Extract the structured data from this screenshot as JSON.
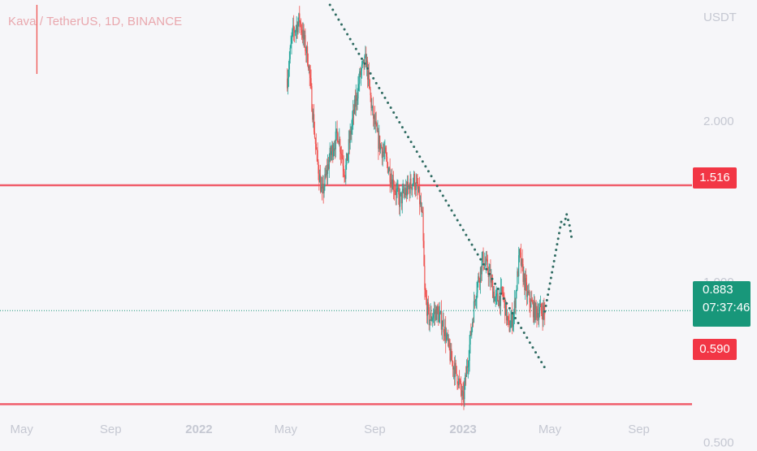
{
  "symbol": {
    "title": "Kava / TetherUS, 1D, BINANCE",
    "currency": "USDT"
  },
  "price_tags": {
    "resistance": "1.516",
    "support": "0.590",
    "current_price": "0.883",
    "countdown": "07:37:46"
  },
  "colors": {
    "background": "#f6f6f9",
    "up_candle": "#26a69a",
    "down_candle": "#ef5350",
    "horizontal_line": "#f05c6b",
    "trendline": "#2f6b62",
    "current_price": "#18977a",
    "axis_text": "#c5c8d2",
    "title_text": "#e9a7ad"
  },
  "chart_data": {
    "type": "candlestick",
    "title": "Kava / TetherUS, 1D, BINANCE",
    "y_scale": "log",
    "ylim": [
      0.46,
      3.3
    ],
    "y_ticks": [
      {
        "value": 2.0,
        "label": "2.000"
      },
      {
        "value": 1.0,
        "label": "1.000"
      },
      {
        "value": 0.5,
        "label": "0.500"
      }
    ],
    "x_range": [
      "2021-04-01",
      "2023-10-31"
    ],
    "x_ticks": [
      {
        "date": "2021-05-01",
        "label": "May"
      },
      {
        "date": "2021-09-01",
        "label": "Sep"
      },
      {
        "date": "2022-01-01",
        "label": "2022"
      },
      {
        "date": "2022-05-01",
        "label": "May"
      },
      {
        "date": "2022-09-01",
        "label": "Sep"
      },
      {
        "date": "2023-01-01",
        "label": "2023"
      },
      {
        "date": "2023-05-01",
        "label": "May"
      },
      {
        "date": "2023-09-01",
        "label": "Sep"
      }
    ],
    "grid": false,
    "horizontal_levels": [
      {
        "name": "resistance",
        "value": 1.516
      },
      {
        "name": "support",
        "value": 0.59
      }
    ],
    "current_price": 0.883,
    "early_wick": {
      "date": "2021-05-22",
      "high": 3.3,
      "low": 2.45
    },
    "price_path": [
      {
        "date": "2022-05-03",
        "close": 2.4
      },
      {
        "date": "2022-05-10",
        "close": 2.9
      },
      {
        "date": "2022-05-20",
        "close": 3.1
      },
      {
        "date": "2022-06-01",
        "close": 2.6
      },
      {
        "date": "2022-06-12",
        "close": 1.75
      },
      {
        "date": "2022-06-20",
        "close": 1.45
      },
      {
        "date": "2022-07-01",
        "close": 1.72
      },
      {
        "date": "2022-07-12",
        "close": 1.9
      },
      {
        "date": "2022-07-22",
        "close": 1.6
      },
      {
        "date": "2022-08-01",
        "close": 2.0
      },
      {
        "date": "2022-08-12",
        "close": 2.45
      },
      {
        "date": "2022-08-20",
        "close": 2.6
      },
      {
        "date": "2022-08-28",
        "close": 2.1
      },
      {
        "date": "2022-09-05",
        "close": 1.85
      },
      {
        "date": "2022-09-15",
        "close": 1.72
      },
      {
        "date": "2022-09-25",
        "close": 1.55
      },
      {
        "date": "2022-10-05",
        "close": 1.42
      },
      {
        "date": "2022-10-15",
        "close": 1.48
      },
      {
        "date": "2022-10-25",
        "close": 1.55
      },
      {
        "date": "2022-11-01",
        "close": 1.45
      },
      {
        "date": "2022-11-06",
        "close": 1.3
      },
      {
        "date": "2022-11-09",
        "close": 0.95
      },
      {
        "date": "2022-11-15",
        "close": 0.85
      },
      {
        "date": "2022-11-25",
        "close": 0.88
      },
      {
        "date": "2022-12-05",
        "close": 0.83
      },
      {
        "date": "2022-12-15",
        "close": 0.72
      },
      {
        "date": "2022-12-25",
        "close": 0.66
      },
      {
        "date": "2023-01-01",
        "close": 0.6
      },
      {
        "date": "2023-01-10",
        "close": 0.76
      },
      {
        "date": "2023-01-18",
        "close": 0.95
      },
      {
        "date": "2023-01-28",
        "close": 1.1
      },
      {
        "date": "2023-02-05",
        "close": 1.05
      },
      {
        "date": "2023-02-15",
        "close": 0.92
      },
      {
        "date": "2023-02-25",
        "close": 0.95
      },
      {
        "date": "2023-03-05",
        "close": 0.82
      },
      {
        "date": "2023-03-12",
        "close": 0.87
      },
      {
        "date": "2023-03-20",
        "close": 1.12
      },
      {
        "date": "2023-03-30",
        "close": 0.95
      },
      {
        "date": "2023-04-10",
        "close": 0.88
      },
      {
        "date": "2023-04-24",
        "close": 0.883
      }
    ],
    "annotations": [
      {
        "type": "dotted-trendline",
        "points": [
          {
            "date": "2022-07-01",
            "value": 3.3
          },
          {
            "date": "2023-04-24",
            "value": 0.69
          }
        ]
      },
      {
        "type": "dotted-projection",
        "points": [
          {
            "date": "2023-04-24",
            "value": 0.88
          },
          {
            "date": "2023-05-17",
            "value": 1.3
          },
          {
            "date": "2023-05-21",
            "value": 1.28
          },
          {
            "date": "2023-05-24",
            "value": 1.34
          },
          {
            "date": "2023-05-28",
            "value": 1.28
          },
          {
            "date": "2023-05-31",
            "value": 1.21
          }
        ]
      }
    ]
  }
}
